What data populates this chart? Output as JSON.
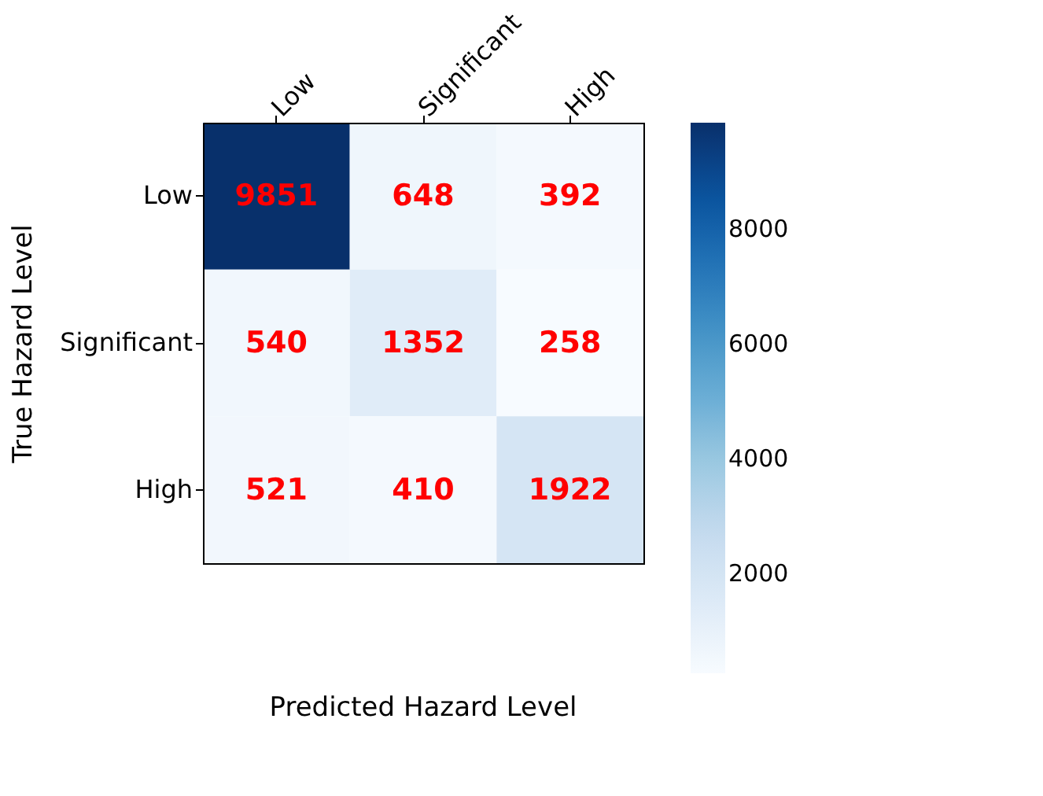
{
  "chart_data": {
    "type": "heatmap",
    "categories": [
      "Low",
      "Significant",
      "High"
    ],
    "y_categories": [
      "Low",
      "Significant",
      "High"
    ],
    "cells": [
      [
        9851,
        648,
        392
      ],
      [
        540,
        1352,
        258
      ],
      [
        521,
        410,
        1922
      ]
    ],
    "xlabel": "Predicted Hazard Level",
    "ylabel": "True Hazard Level",
    "clim": [
      258,
      9851
    ],
    "cticks": [
      2000,
      4000,
      6000,
      8000
    ],
    "data_labels": true
  }
}
